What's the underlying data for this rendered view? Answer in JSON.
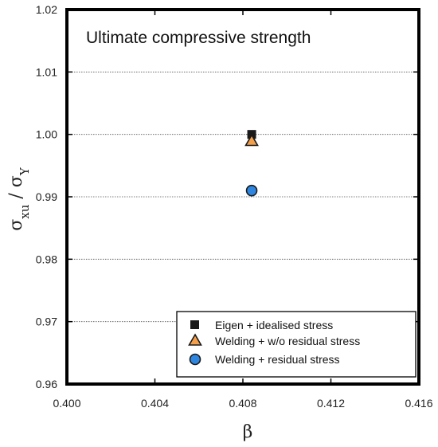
{
  "chart_data": {
    "type": "scatter",
    "title": "Ultimate compressive strength",
    "xlabel": "β",
    "ylabel": {
      "sigma": "σ",
      "numerator_subscript": "xu",
      "separator": " / ",
      "denominator_subscript": "Y"
    },
    "xlim": [
      0.4,
      0.416
    ],
    "ylim": [
      0.96,
      1.02
    ],
    "xticks": [
      "0.400",
      "0.404",
      "0.408",
      "0.412",
      "0.416"
    ],
    "yticks": [
      "0.96",
      "0.97",
      "0.98",
      "0.99",
      "1.00",
      "1.01",
      "1.02"
    ],
    "grid": "horizontal dotted",
    "legend_position": "bottom-right",
    "series": [
      {
        "name": "Eigen + idealised stress",
        "marker": "square",
        "color": "#1a1a1a",
        "x": [
          0.4084
        ],
        "y": [
          1.0
        ]
      },
      {
        "name": "Welding + w/o residual stress",
        "marker": "triangle",
        "color": "#f4a04a",
        "x": [
          0.4084
        ],
        "y": [
          0.999
        ]
      },
      {
        "name": "Welding + residual stress",
        "marker": "circle",
        "color": "#2f86e0",
        "x": [
          0.4084
        ],
        "y": [
          0.991
        ]
      }
    ]
  }
}
